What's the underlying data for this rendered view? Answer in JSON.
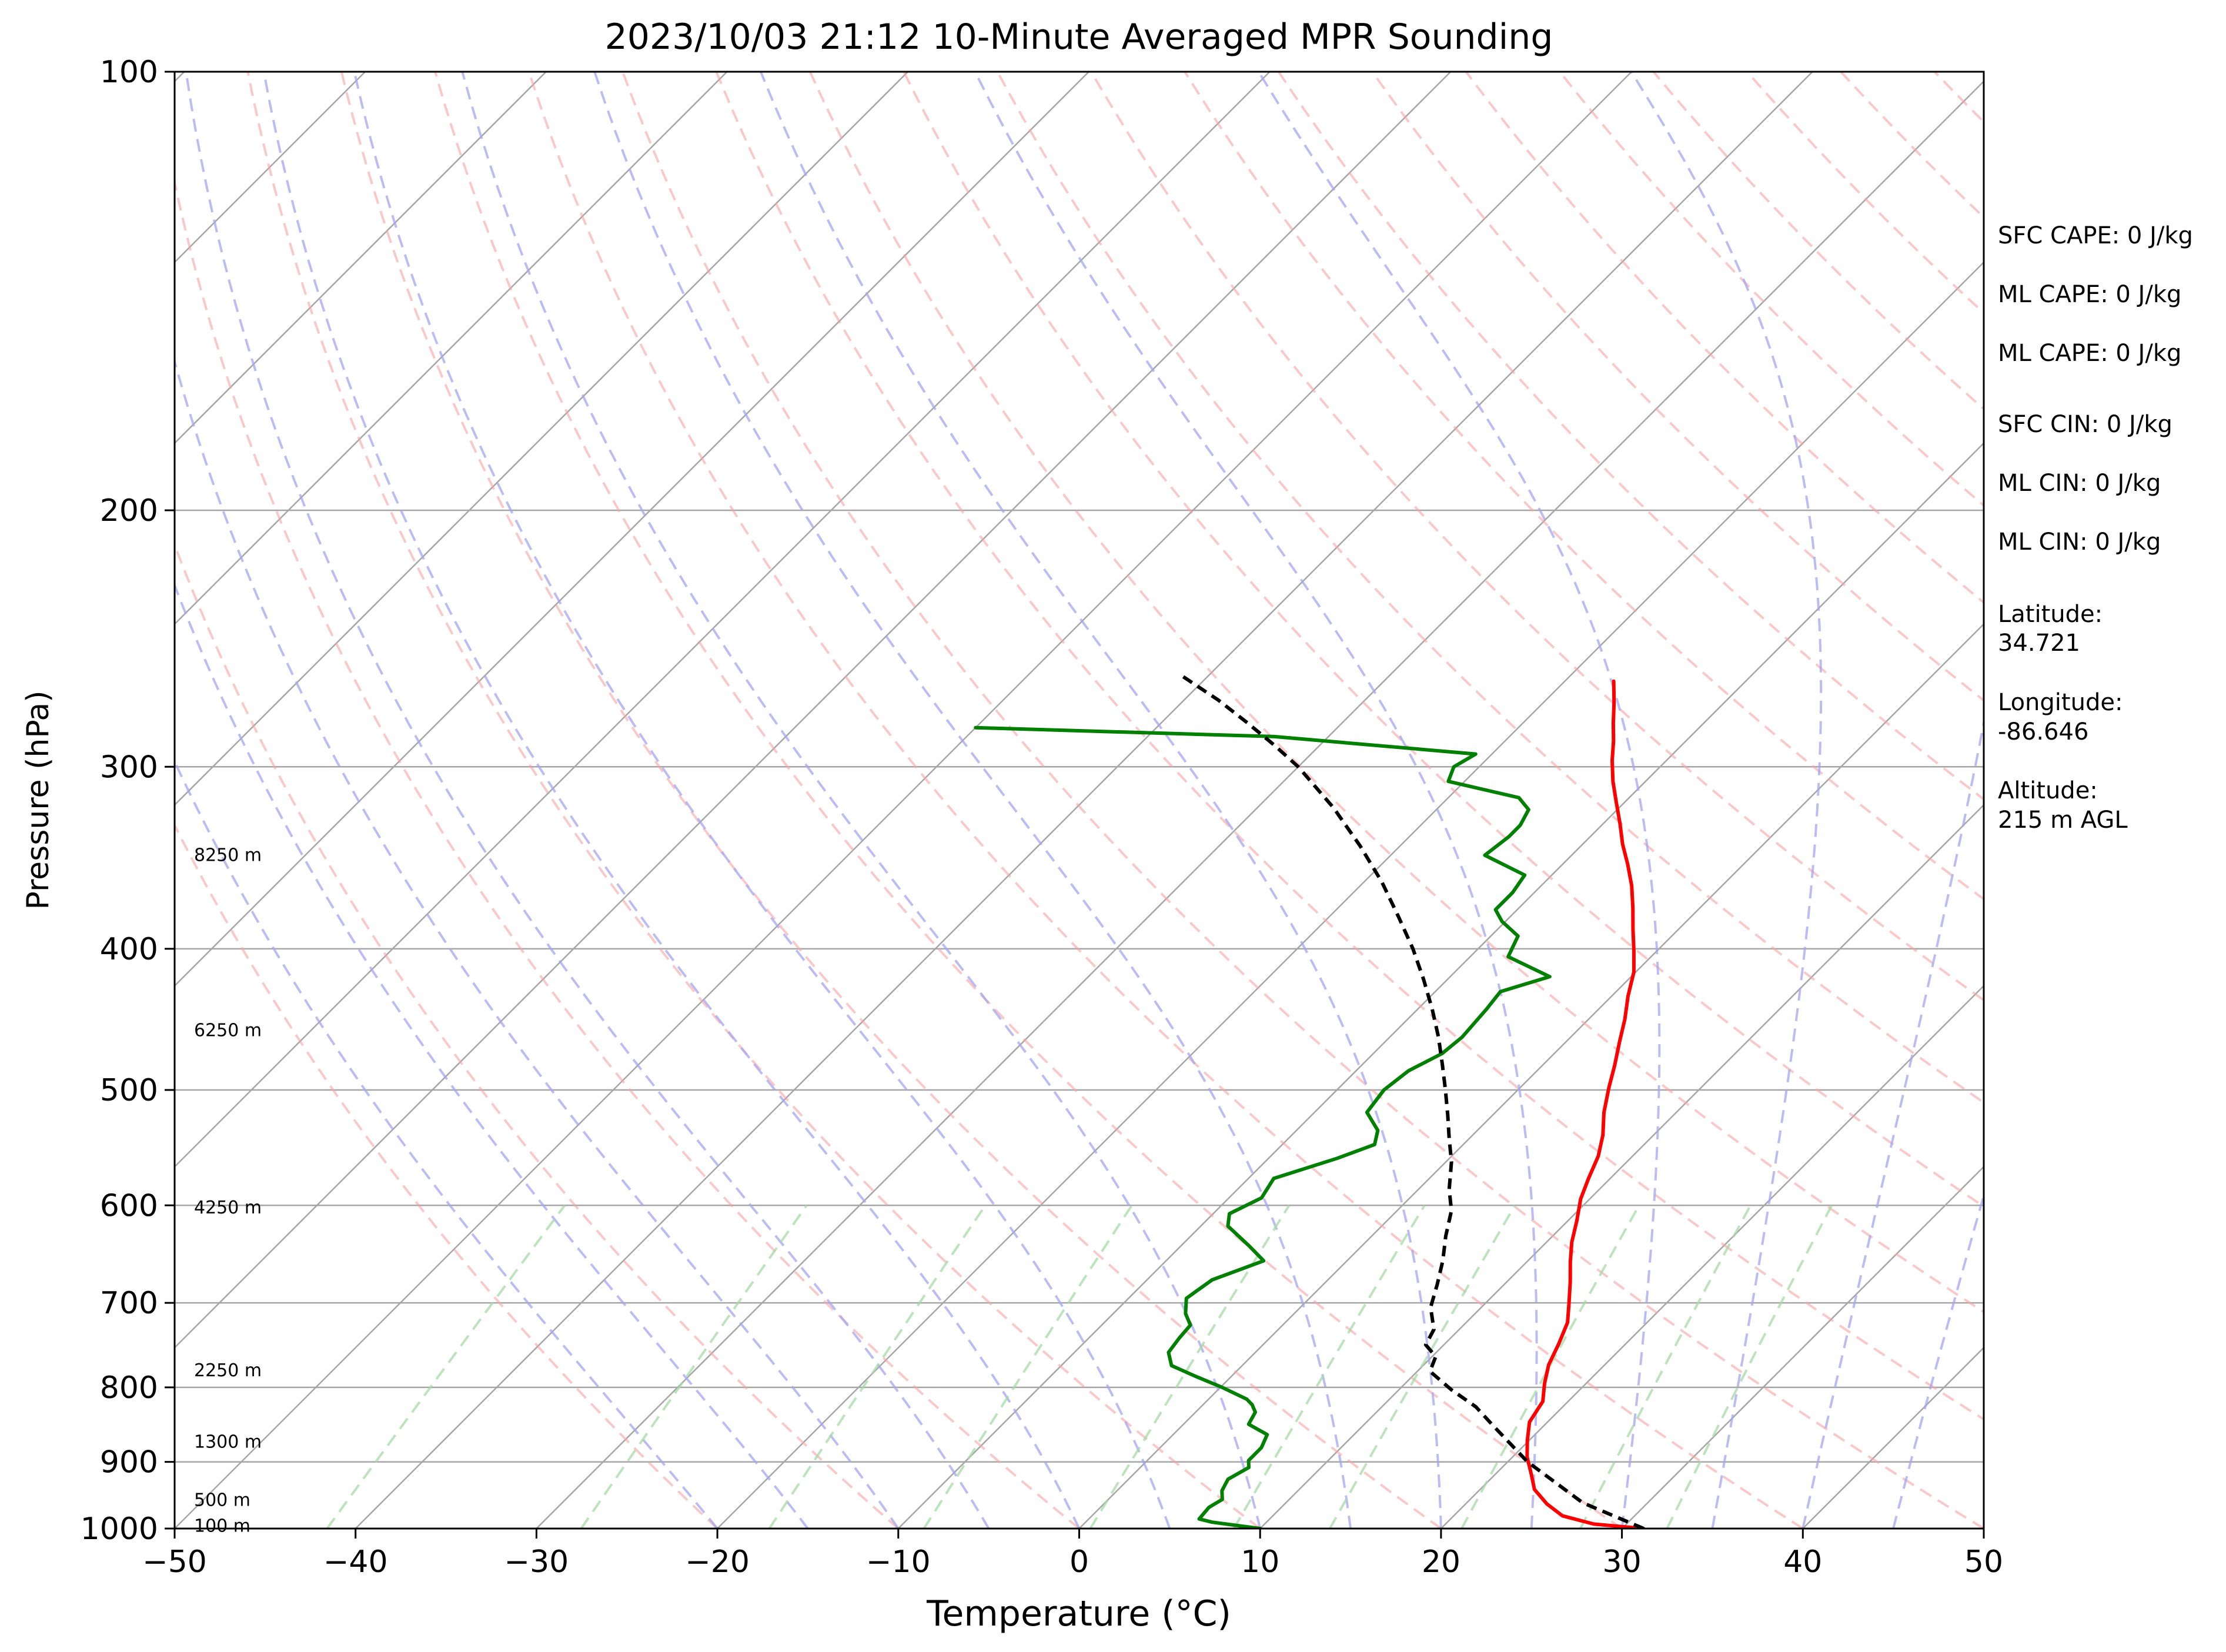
{
  "chart_data": {
    "type": "line",
    "title": "2023/10/03 21:12 10-Minute Averaged MPR Sounding",
    "xlabel": "Temperature (°C)",
    "ylabel": "Pressure (hPa)",
    "xlim": [
      -50,
      50
    ],
    "ylim": [
      1000,
      100
    ],
    "y_scale": "log",
    "skew": "skew-T",
    "grid": true,
    "x_ticks": [
      "−50",
      "−40",
      "−30",
      "−20",
      "−10",
      "0",
      "10",
      "20",
      "30",
      "40",
      "50"
    ],
    "y_ticks": [
      "100",
      "200",
      "300",
      "400",
      "500",
      "600",
      "700",
      "800",
      "900",
      "1000"
    ],
    "series": [
      {
        "color": "#ff0000",
        "points": [
          [
            31.2,
            1000
          ],
          [
            28.2,
            993
          ],
          [
            26.0,
            980
          ],
          [
            24.5,
            962
          ],
          [
            23.0,
            940
          ],
          [
            22.0,
            918
          ],
          [
            20.8,
            893
          ],
          [
            19.9,
            870
          ],
          [
            19.0,
            845
          ],
          [
            18.6,
            818
          ],
          [
            17.7,
            795
          ],
          [
            16.9,
            772
          ],
          [
            16.3,
            747
          ],
          [
            15.6,
            722
          ],
          [
            14.6,
            700
          ],
          [
            13.5,
            677
          ],
          [
            12.4,
            656
          ],
          [
            11.4,
            636
          ],
          [
            10.5,
            615
          ],
          [
            9.5,
            594
          ],
          [
            8.8,
            575
          ],
          [
            8.1,
            555
          ],
          [
            7.2,
            537
          ],
          [
            6.0,
            518
          ],
          [
            4.9,
            498
          ],
          [
            4.0,
            481
          ],
          [
            3.0,
            464
          ],
          [
            2.0,
            447
          ],
          [
            0.9,
            431
          ],
          [
            -0.1,
            415
          ],
          [
            -1.3,
            401
          ],
          [
            -2.5,
            388
          ],
          [
            -3.7,
            375
          ],
          [
            -5.0,
            362
          ],
          [
            -6.4,
            350
          ],
          [
            -7.8,
            339
          ],
          [
            -9.1,
            328
          ],
          [
            -10.5,
            317
          ],
          [
            -11.8,
            307
          ],
          [
            -13.0,
            297
          ],
          [
            -14.0,
            288
          ],
          [
            -15.0,
            280
          ],
          [
            -16.1,
            271
          ],
          [
            -17.3,
            262
          ]
        ]
      },
      {
        "color": "#008000",
        "points": [
          [
            10.0,
            1000
          ],
          [
            8.5,
            995
          ],
          [
            7.0,
            990
          ],
          [
            6.1,
            985
          ],
          [
            6.0,
            967
          ],
          [
            6.3,
            955
          ],
          [
            5.8,
            942
          ],
          [
            5.5,
            925
          ],
          [
            6.0,
            908
          ],
          [
            5.6,
            898
          ],
          [
            5.6,
            880
          ],
          [
            5.2,
            862
          ],
          [
            3.6,
            848
          ],
          [
            3.3,
            832
          ],
          [
            2.7,
            822
          ],
          [
            2.1,
            815
          ],
          [
            0.1,
            800
          ],
          [
            -2.0,
            786
          ],
          [
            -3.9,
            773
          ],
          [
            -4.8,
            757
          ],
          [
            -5.0,
            740
          ],
          [
            -5.1,
            725
          ],
          [
            -6.0,
            712
          ],
          [
            -6.8,
            695
          ],
          [
            -6.4,
            675
          ],
          [
            -4.6,
            655
          ],
          [
            -6.2,
            640
          ],
          [
            -8.5,
            620
          ],
          [
            -9.1,
            608
          ],
          [
            -8.2,
            593
          ],
          [
            -8.6,
            575
          ],
          [
            -6.2,
            557
          ],
          [
            -4.9,
            545
          ],
          [
            -5.5,
            533
          ],
          [
            -7.1,
            518
          ],
          [
            -7.4,
            500
          ],
          [
            -7.1,
            485
          ],
          [
            -6.2,
            472
          ],
          [
            -6.0,
            460
          ],
          [
            -6.2,
            440
          ],
          [
            -6.4,
            428
          ],
          [
            -4.5,
            418
          ],
          [
            -7.9,
            405
          ],
          [
            -8.5,
            392
          ],
          [
            -10.2,
            383
          ],
          [
            -11.2,
            376
          ],
          [
            -11.2,
            366
          ],
          [
            -11.5,
            356
          ],
          [
            -14.8,
            345
          ],
          [
            -14.5,
            335
          ],
          [
            -14.5,
            329
          ],
          [
            -14.9,
            321
          ],
          [
            -16.1,
            315
          ],
          [
            -20.9,
            307
          ],
          [
            -21.4,
            300
          ],
          [
            -20.9,
            294
          ],
          [
            -33.0,
            286
          ],
          [
            -50.0,
            282
          ]
        ]
      },
      {
        "color": "#000000",
        "dashed": true,
        "points": [
          [
            31.2,
            1000
          ],
          [
            26.4,
            960
          ],
          [
            21.1,
            900
          ],
          [
            17.2,
            850
          ],
          [
            15.2,
            825
          ],
          [
            12.9,
            803
          ],
          [
            10.7,
            780
          ],
          [
            10.2,
            762
          ],
          [
            9.0,
            748
          ],
          [
            8.6,
            730
          ],
          [
            7.2,
            705
          ],
          [
            6.3,
            680
          ],
          [
            5.3,
            655
          ],
          [
            4.1,
            630
          ],
          [
            3.0,
            605
          ],
          [
            1.7,
            585
          ],
          [
            0.3,
            560
          ],
          [
            -1.1,
            540
          ],
          [
            -2.5,
            520
          ],
          [
            -4.0,
            500
          ],
          [
            -5.6,
            480
          ],
          [
            -7.3,
            460
          ],
          [
            -9.2,
            440
          ],
          [
            -11.3,
            420
          ],
          [
            -13.6,
            400
          ],
          [
            -16.2,
            380
          ],
          [
            -19.0,
            360
          ],
          [
            -22.2,
            340
          ],
          [
            -25.8,
            320
          ],
          [
            -30.0,
            300
          ],
          [
            -32.5,
            290
          ],
          [
            -35.2,
            280
          ],
          [
            -38.1,
            270
          ],
          [
            -41.4,
            260
          ]
        ]
      }
    ],
    "height_labels": [
      "8250 m",
      "6250 m",
      "4250 m",
      "2250 m",
      "1300 m",
      "500 m",
      "100 m"
    ],
    "height_label_pressures": [
      345,
      455,
      602,
      779,
      872,
      956,
      996
    ],
    "stats": [
      "SFC CAPE: 0 J/kg",
      "ML CAPE: 0 J/kg",
      "ML CAPE: 0 J/kg",
      "SFC CIN: 0 J/kg",
      "ML CIN: 0 J/kg",
      "ML CIN: 0 J/kg"
    ],
    "station": [
      [
        "Latitude:",
        "34.721"
      ],
      [
        "Longitude:",
        "-86.646"
      ],
      [
        "Altitude:",
        "215 m AGL"
      ]
    ],
    "isotherm_values": [
      -170,
      -160,
      -150,
      -140,
      -130,
      -120,
      -110,
      -100,
      -90,
      -80,
      -70,
      -60,
      -50,
      -40,
      -30,
      -20,
      -10,
      0,
      10,
      20,
      30,
      40,
      50
    ],
    "dry_adiabat_thetas": [
      -20,
      -10,
      0,
      10,
      20,
      30,
      40,
      50,
      60,
      70,
      80,
      90,
      100,
      110,
      120,
      130,
      140,
      150,
      160,
      170,
      180,
      190,
      200,
      210,
      220
    ],
    "moist_adiabat_surface_temps": [
      -20,
      -15,
      -10,
      -5,
      0,
      5,
      10,
      15,
      20,
      25,
      30,
      35,
      40,
      45
    ],
    "mixing_ratio_values": [
      0.1,
      0.4,
      1,
      2,
      4,
      7,
      10,
      16,
      24,
      32
    ],
    "colors": {
      "temperature": "#ff0000",
      "dewpoint": "#008000",
      "parcel": "#000000",
      "isotherm": "#a6a6a6",
      "dry_adiabat": "#f7a3a3",
      "moist_adiabat": "#a6a6f2",
      "mixing_ratio": "#a6d9a6"
    }
  }
}
